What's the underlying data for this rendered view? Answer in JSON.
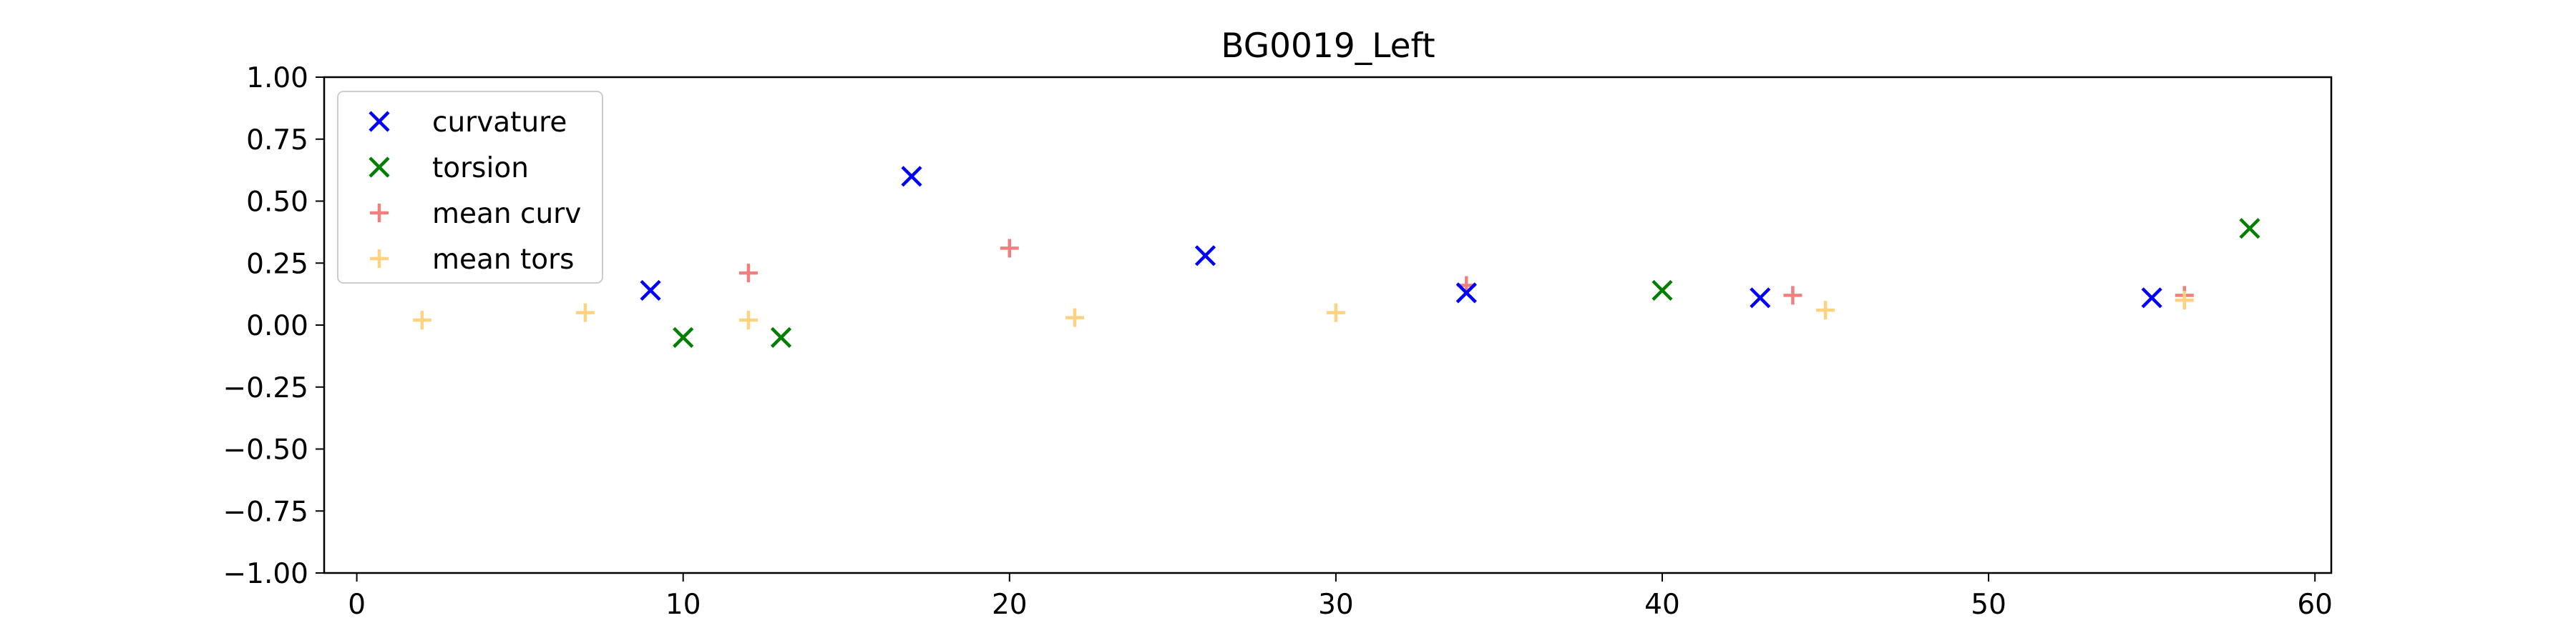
{
  "chart_data": {
    "type": "scatter",
    "title": "BG0019_Left",
    "xlabel": "",
    "ylabel": "",
    "xlim": [
      -1,
      60.5
    ],
    "ylim": [
      -1.0,
      1.0
    ],
    "xticks": [
      0,
      10,
      20,
      30,
      40,
      50,
      60
    ],
    "xtick_labels": [
      "0",
      "10",
      "20",
      "30",
      "40",
      "50",
      "60"
    ],
    "yticks": [
      1.0,
      0.75,
      0.5,
      0.25,
      0.0,
      -0.25,
      -0.5,
      -0.75,
      -1.0
    ],
    "ytick_labels": [
      "1.00",
      "0.75",
      "0.50",
      "0.25",
      "0.00",
      "−0.25",
      "−0.50",
      "−0.75",
      "−1.00"
    ],
    "grid": false,
    "legend_position": "top-left",
    "series": [
      {
        "name": "curvature",
        "marker": "x",
        "color": "#0000ff",
        "points": [
          [
            9,
            0.14
          ],
          [
            17,
            0.6
          ],
          [
            26,
            0.28
          ],
          [
            34,
            0.13
          ],
          [
            43,
            0.11
          ],
          [
            55,
            0.11
          ]
        ]
      },
      {
        "name": "torsion",
        "marker": "x",
        "color": "#008000",
        "points": [
          [
            10,
            -0.05
          ],
          [
            13,
            -0.05
          ],
          [
            40,
            0.14
          ],
          [
            58,
            0.39
          ]
        ]
      },
      {
        "name": "mean curv",
        "marker": "+",
        "color": "#f08080",
        "points": [
          [
            12,
            0.21
          ],
          [
            20,
            0.31
          ],
          [
            34,
            0.16
          ],
          [
            44,
            0.12
          ],
          [
            56,
            0.12
          ]
        ]
      },
      {
        "name": "mean tors",
        "marker": "+",
        "color": "#ffd27f",
        "points": [
          [
            2,
            0.02
          ],
          [
            7,
            0.05
          ],
          [
            12,
            0.02
          ],
          [
            22,
            0.03
          ],
          [
            30,
            0.05
          ],
          [
            45,
            0.06
          ],
          [
            56,
            0.1
          ]
        ]
      }
    ]
  }
}
